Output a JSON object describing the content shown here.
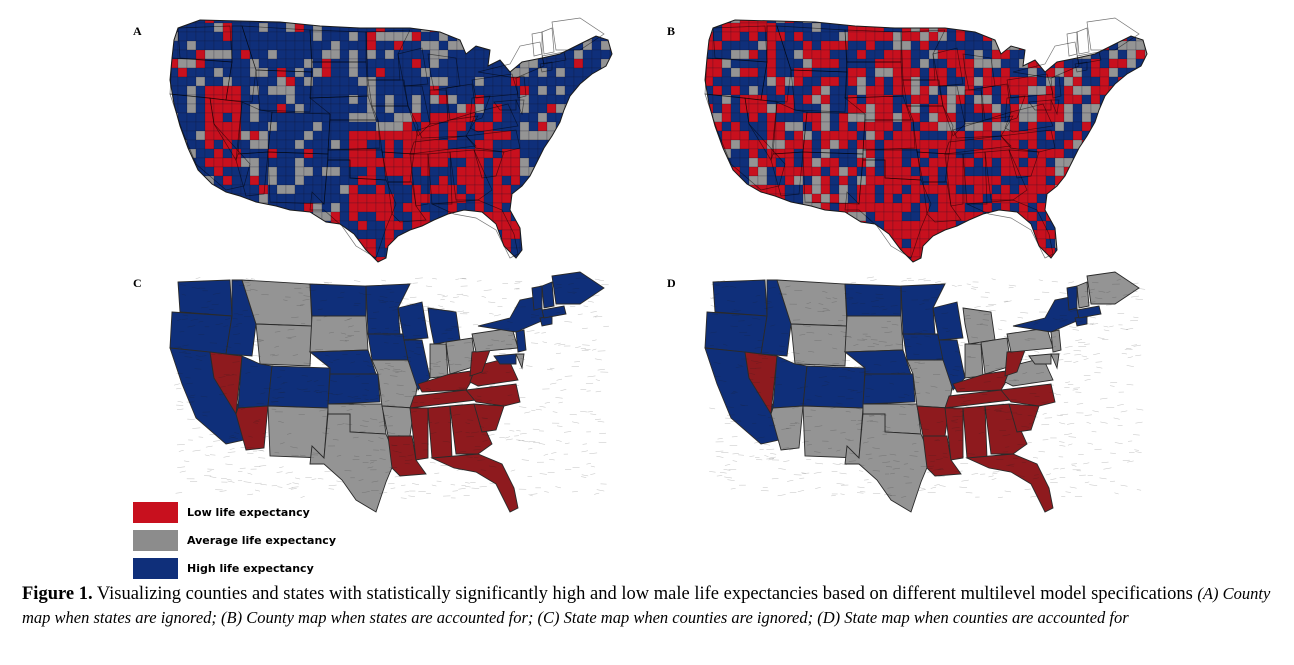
{
  "panels": [
    {
      "letter": "A",
      "kind": "county",
      "fill": "#e8eef5"
    },
    {
      "letter": "B",
      "kind": "county",
      "fill": "#f5e8e8"
    },
    {
      "letter": "C",
      "kind": "state"
    },
    {
      "letter": "D",
      "kind": "state"
    }
  ],
  "colors": {
    "low": "#c8101e",
    "low_dark": "#8e1a1e",
    "average": "#949494",
    "high": "#0f2f7a",
    "border": "#2a2a2a"
  },
  "legend": [
    {
      "label": "Low life expectancy",
      "color": "#c8101e"
    },
    {
      "label": "Average life expectancy",
      "color": "#8c8c8c"
    },
    {
      "label": "High life expectancy",
      "color": "#0f2f7a"
    }
  ],
  "caption": {
    "figure_label": "Figure 1.",
    "main": "Visualizing counties and states with statistically significantly high and low male life expectancies based on different multilevel model specifications",
    "detail": "(A) County map when states are ignored; (B) County map when states are accounted for; (C) State map when counties are ignored; (D) State map when counties are accounted for"
  }
}
